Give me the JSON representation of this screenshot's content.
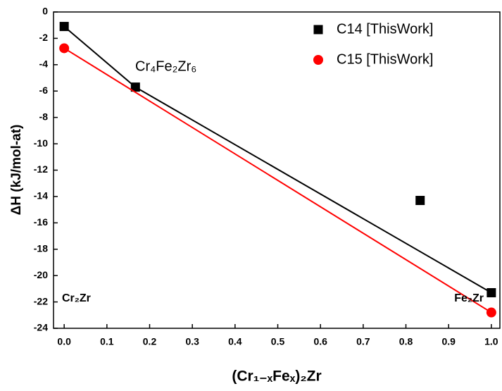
{
  "chart_data": {
    "type": "scatter",
    "x_label": "(Cr₁₋ₓFeₓ)₂Zr",
    "y_label": "ΔH (kJ/mol-at)",
    "xlim": [
      -0.025,
      1.02
    ],
    "ylim": [
      -24,
      0
    ],
    "xticks": [
      {
        "value": 0,
        "label": "0.0"
      },
      0.1,
      0.2,
      0.3,
      0.4,
      0.5,
      0.6,
      0.7,
      0.8,
      0.9,
      {
        "value": 1,
        "label": "1.0"
      }
    ],
    "yticks": [
      0,
      -2,
      -4,
      -6,
      -8,
      -10,
      -12,
      -14,
      -16,
      -18,
      -20,
      -22,
      -24
    ],
    "legend": "upper right",
    "series": [
      {
        "name": "C14 [ThisWork]",
        "color": "#000000",
        "marker": "square",
        "x": [
          0,
          0.1667,
          0.8333,
          1
        ],
        "values": [
          -1.1,
          -5.7,
          -14.3,
          -21.3
        ],
        "connect": [
          0,
          1,
          3
        ]
      },
      {
        "name": "C15 [ThisWork]",
        "color": "#ff0000",
        "marker": "circle",
        "x": [
          0,
          1
        ],
        "values": [
          -2.75,
          -22.8
        ],
        "connect": [
          0,
          1
        ]
      }
    ],
    "annotations": [
      "Cr₄Fe₂Zr₆",
      "Cr₂Zr",
      "Fe₂Zr"
    ]
  }
}
